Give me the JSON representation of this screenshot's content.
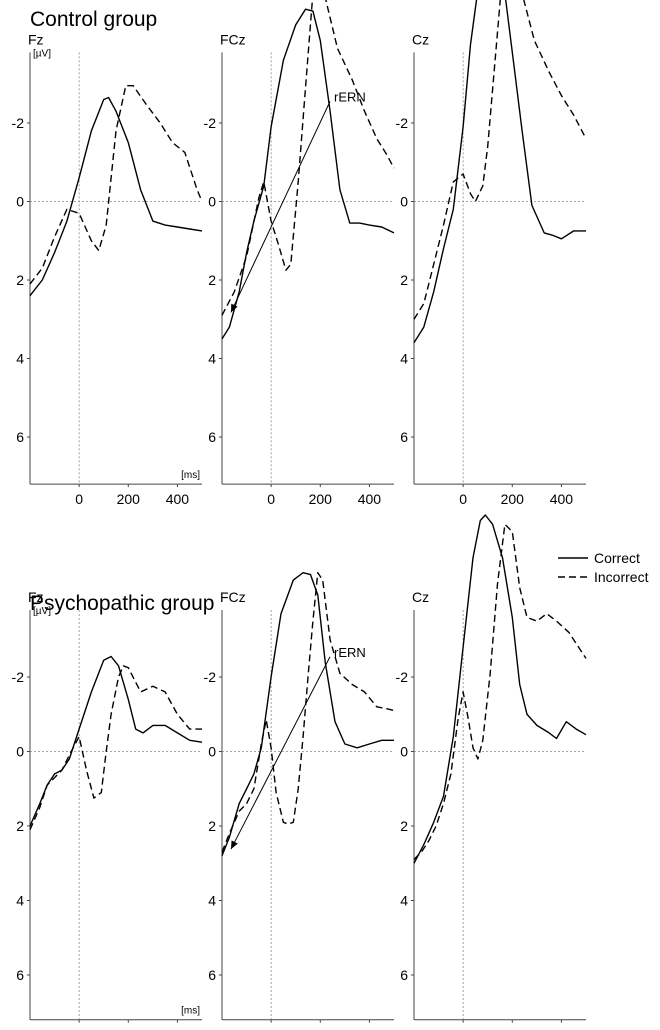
{
  "legend": {
    "correct_label": "Correct",
    "incorrect_label": "Incorrect",
    "position": "right, between groups"
  },
  "chart_data": {
    "type": "line",
    "x_unit": "[ms]",
    "y_unit": "[µV]",
    "y_axis_inverted": true,
    "xlim": [
      -200,
      500
    ],
    "ylim": [
      -3.8,
      7.2
    ],
    "x_ticks": [
      0,
      200,
      400
    ],
    "y_ticks": [
      -2,
      0,
      2,
      4,
      6
    ],
    "y_tick_labels": [
      "-2",
      "0",
      "2",
      "4",
      "6"
    ],
    "zero_reference_lines": "dotted",
    "series_names": [
      "Correct",
      "Incorrect"
    ],
    "annotation": "rERN",
    "groups": [
      {
        "title": "Control group",
        "panels": [
          {
            "electrode": "Fz",
            "series": [
              {
                "name": "Correct",
                "style": "solid",
                "x": [
                  -200,
                  -150,
                  -100,
                  -50,
                  0,
                  50,
                  100,
                  120,
                  150,
                  200,
                  250,
                  300,
                  350,
                  400,
                  450,
                  500
                ],
                "y": [
                  -2.4,
                  -2.0,
                  -1.3,
                  -0.5,
                  0.6,
                  1.8,
                  2.6,
                  2.65,
                  2.3,
                  1.5,
                  0.3,
                  -0.5,
                  -0.6,
                  -0.65,
                  -0.7,
                  -0.75
                ]
              },
              {
                "name": "Incorrect",
                "style": "dashed",
                "x": [
                  -200,
                  -150,
                  -100,
                  -50,
                  0,
                  50,
                  80,
                  110,
                  150,
                  190,
                  220,
                  270,
                  330,
                  380,
                  430,
                  480,
                  500
                ],
                "y": [
                  -2.1,
                  -1.7,
                  -0.9,
                  -0.2,
                  -0.3,
                  -1.0,
                  -1.25,
                  -0.6,
                  1.8,
                  2.95,
                  2.95,
                  2.5,
                  2.0,
                  1.5,
                  1.25,
                  0.3,
                  0.0
                ]
              }
            ]
          },
          {
            "electrode": "FCz",
            "series": [
              {
                "name": "Correct",
                "style": "solid",
                "x": [
                  -200,
                  -170,
                  -130,
                  -100,
                  -70,
                  -30,
                  0,
                  50,
                  100,
                  140,
                  170,
                  200,
                  240,
                  280,
                  320,
                  360,
                  400,
                  450,
                  500
                ],
                "y": [
                  -3.5,
                  -3.2,
                  -2.3,
                  -1.3,
                  -0.5,
                  0.4,
                  1.9,
                  3.6,
                  4.5,
                  4.9,
                  4.85,
                  4.1,
                  2.3,
                  0.3,
                  -0.55,
                  -0.55,
                  -0.6,
                  -0.65,
                  -0.8
                ]
              },
              {
                "name": "Incorrect",
                "style": "dashed",
                "x": [
                  -200,
                  -150,
                  -100,
                  -50,
                  -30,
                  0,
                  30,
                  60,
                  80,
                  110,
                  140,
                  170,
                  190,
                  220,
                  270,
                  330,
                  380,
                  430,
                  470,
                  500
                ],
                "y": [
                  -2.9,
                  -2.3,
                  -1.4,
                  0.1,
                  0.5,
                  -0.5,
                  -1.1,
                  -1.75,
                  -1.6,
                  0.5,
                  2.9,
                  5.3,
                  5.75,
                  5.2,
                  3.9,
                  3.1,
                  2.3,
                  1.6,
                  1.2,
                  0.85
                ]
              }
            ]
          },
          {
            "electrode": "Cz",
            "series": [
              {
                "name": "Correct",
                "style": "solid",
                "x": [
                  -200,
                  -160,
                  -120,
                  -80,
                  -40,
                  0,
                  30,
                  60,
                  100,
                  130,
                  170,
                  200,
                  240,
                  280,
                  330,
                  360,
                  400,
                  450,
                  500
                ],
                "y": [
                  -3.6,
                  -3.2,
                  -2.3,
                  -1.2,
                  -0.2,
                  1.9,
                  4.0,
                  5.4,
                  6.0,
                  5.95,
                  5.3,
                  3.8,
                  1.8,
                  -0.1,
                  -0.8,
                  -0.85,
                  -0.95,
                  -0.75,
                  -0.75
                ]
              },
              {
                "name": "Incorrect",
                "style": "dashed",
                "x": [
                  -200,
                  -160,
                  -120,
                  -80,
                  -40,
                  0,
                  30,
                  50,
                  80,
                  100,
                  130,
                  160,
                  190,
                  210,
                  240,
                  290,
                  350,
                  400,
                  450,
                  500
                ],
                "y": [
                  -3.0,
                  -2.6,
                  -1.6,
                  -0.6,
                  0.5,
                  0.7,
                  0.2,
                  0.0,
                  0.4,
                  1.4,
                  3.6,
                  5.8,
                  6.55,
                  6.5,
                  5.3,
                  4.1,
                  3.3,
                  2.7,
                  2.2,
                  1.6
                ]
              }
            ]
          }
        ]
      },
      {
        "title": "Psychopathic group",
        "panels": [
          {
            "electrode": "Fz",
            "series": [
              {
                "name": "Correct",
                "style": "solid",
                "x": [
                  -200,
                  -160,
                  -130,
                  -100,
                  -70,
                  -40,
                  0,
                  50,
                  100,
                  130,
                  160,
                  200,
                  230,
                  260,
                  300,
                  350,
                  400,
                  450,
                  500
                ],
                "y": [
                  -2.0,
                  -1.4,
                  -0.9,
                  -0.6,
                  -0.5,
                  -0.2,
                  0.6,
                  1.6,
                  2.45,
                  2.55,
                  2.3,
                  1.4,
                  0.6,
                  0.5,
                  0.7,
                  0.7,
                  0.5,
                  0.3,
                  0.25
                ]
              },
              {
                "name": "Incorrect",
                "style": "dashed",
                "x": [
                  -200,
                  -160,
                  -130,
                  -100,
                  -70,
                  -40,
                  0,
                  30,
                  60,
                  90,
                  110,
                  130,
                  160,
                  180,
                  200,
                  250,
                  300,
                  350,
                  400,
                  450,
                  500
                ],
                "y": [
                  -2.1,
                  -1.5,
                  -0.9,
                  -0.7,
                  -0.5,
                  -0.1,
                  0.4,
                  -0.5,
                  -1.25,
                  -1.1,
                  0.0,
                  1.0,
                  2.0,
                  2.3,
                  2.25,
                  1.6,
                  1.75,
                  1.6,
                  1.0,
                  0.6,
                  0.6
                ]
              }
            ]
          },
          {
            "electrode": "FCz",
            "series": [
              {
                "name": "Correct",
                "style": "solid",
                "x": [
                  -200,
                  -170,
                  -130,
                  -100,
                  -70,
                  -40,
                  0,
                  40,
                  90,
                  130,
                  160,
                  190,
                  220,
                  260,
                  300,
                  350,
                  400,
                  450,
                  500
                ],
                "y": [
                  -2.8,
                  -2.3,
                  -1.4,
                  -1.0,
                  -0.6,
                  0.1,
                  2.0,
                  3.7,
                  4.6,
                  4.8,
                  4.75,
                  4.2,
                  2.4,
                  0.8,
                  0.2,
                  0.1,
                  0.2,
                  0.3,
                  0.3
                ]
              },
              {
                "name": "Incorrect",
                "style": "dashed",
                "x": [
                  -200,
                  -170,
                  -130,
                  -100,
                  -70,
                  -40,
                  -20,
                  0,
                  20,
                  50,
                  70,
                  90,
                  110,
                  130,
                  150,
                  170,
                  190,
                  210,
                  240,
                  280,
                  330,
                  380,
                  430,
                  470,
                  500
                ],
                "y": [
                  -2.7,
                  -2.2,
                  -1.6,
                  -1.4,
                  -1.0,
                  0.2,
                  0.85,
                  0.1,
                  -1.1,
                  -1.9,
                  -1.95,
                  -1.9,
                  -1.0,
                  0.4,
                  2.0,
                  3.5,
                  4.8,
                  4.6,
                  3.0,
                  2.1,
                  1.8,
                  1.6,
                  1.2,
                  1.15,
                  1.1
                ]
              }
            ]
          },
          {
            "electrode": "Cz",
            "series": [
              {
                "name": "Correct",
                "style": "solid",
                "x": [
                  -200,
                  -160,
                  -120,
                  -80,
                  -40,
                  0,
                  40,
                  70,
                  90,
                  120,
                  160,
                  200,
                  230,
                  260,
                  300,
                  350,
                  380,
                  420,
                  460,
                  500
                ],
                "y": [
                  -3.0,
                  -2.5,
                  -1.9,
                  -1.2,
                  0.4,
                  2.8,
                  5.2,
                  6.2,
                  6.35,
                  6.1,
                  5.2,
                  3.6,
                  1.8,
                  1.0,
                  0.7,
                  0.5,
                  0.35,
                  0.8,
                  0.6,
                  0.45
                ]
              },
              {
                "name": "Incorrect",
                "style": "dashed",
                "x": [
                  -200,
                  -170,
                  -140,
                  -110,
                  -80,
                  -50,
                  -20,
                  0,
                  20,
                  40,
                  60,
                  80,
                  110,
                  140,
                  170,
                  200,
                  230,
                  260,
                  300,
                  340,
                  380,
                  430,
                  470,
                  500
                ],
                "y": [
                  -2.9,
                  -2.7,
                  -2.4,
                  -2.0,
                  -1.4,
                  -0.6,
                  0.9,
                  1.6,
                  0.9,
                  0.1,
                  -0.2,
                  0.3,
                  2.1,
                  4.5,
                  6.1,
                  5.9,
                  4.4,
                  3.6,
                  3.5,
                  3.7,
                  3.5,
                  3.2,
                  2.8,
                  2.5
                ]
              }
            ]
          }
        ]
      }
    ]
  }
}
